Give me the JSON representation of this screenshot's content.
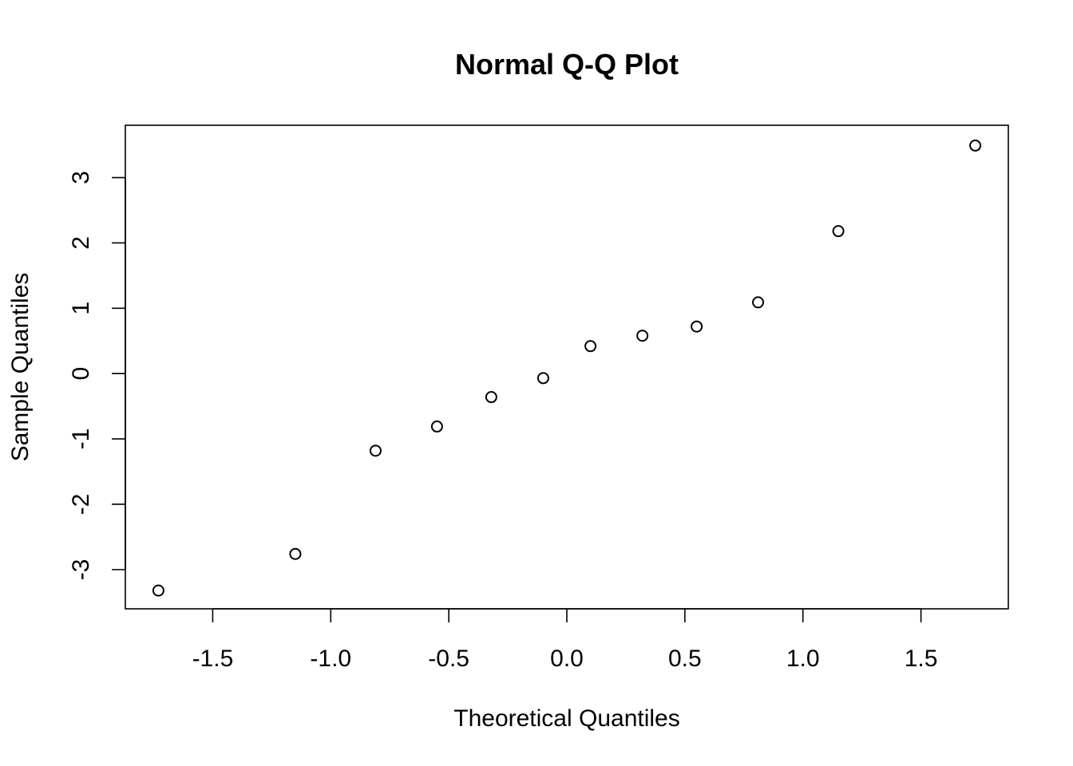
{
  "chart_data": {
    "type": "scatter",
    "title": "Normal Q-Q Plot",
    "xlabel": "Theoretical Quantiles",
    "ylabel": "Sample Quantiles",
    "xlim": [
      -1.87,
      1.87
    ],
    "ylim": [
      -3.6,
      3.8
    ],
    "x_ticks": [
      -1.5,
      -1.0,
      -0.5,
      0.0,
      0.5,
      1.0,
      1.5
    ],
    "x_tick_labels": [
      "-1.5",
      "-1.0",
      "-0.5",
      "0.0",
      "0.5",
      "1.0",
      "1.5"
    ],
    "y_ticks": [
      -3,
      -2,
      -1,
      0,
      1,
      2,
      3
    ],
    "y_tick_labels": [
      "-3",
      "-2",
      "-1",
      "0",
      "1",
      "2",
      "3"
    ],
    "grid": false,
    "marker": "open-circle",
    "points": [
      {
        "x": -1.73,
        "y": -3.32
      },
      {
        "x": -1.15,
        "y": -2.76
      },
      {
        "x": -0.81,
        "y": -1.18
      },
      {
        "x": -0.55,
        "y": -0.81
      },
      {
        "x": -0.32,
        "y": -0.36
      },
      {
        "x": -0.1,
        "y": -0.07
      },
      {
        "x": 0.1,
        "y": 0.42
      },
      {
        "x": 0.32,
        "y": 0.58
      },
      {
        "x": 0.55,
        "y": 0.72
      },
      {
        "x": 0.81,
        "y": 1.09
      },
      {
        "x": 1.15,
        "y": 2.18
      },
      {
        "x": 1.73,
        "y": 3.49
      }
    ],
    "colors": {
      "marker": "#000000",
      "axis": "#000000",
      "background": "#ffffff"
    }
  }
}
